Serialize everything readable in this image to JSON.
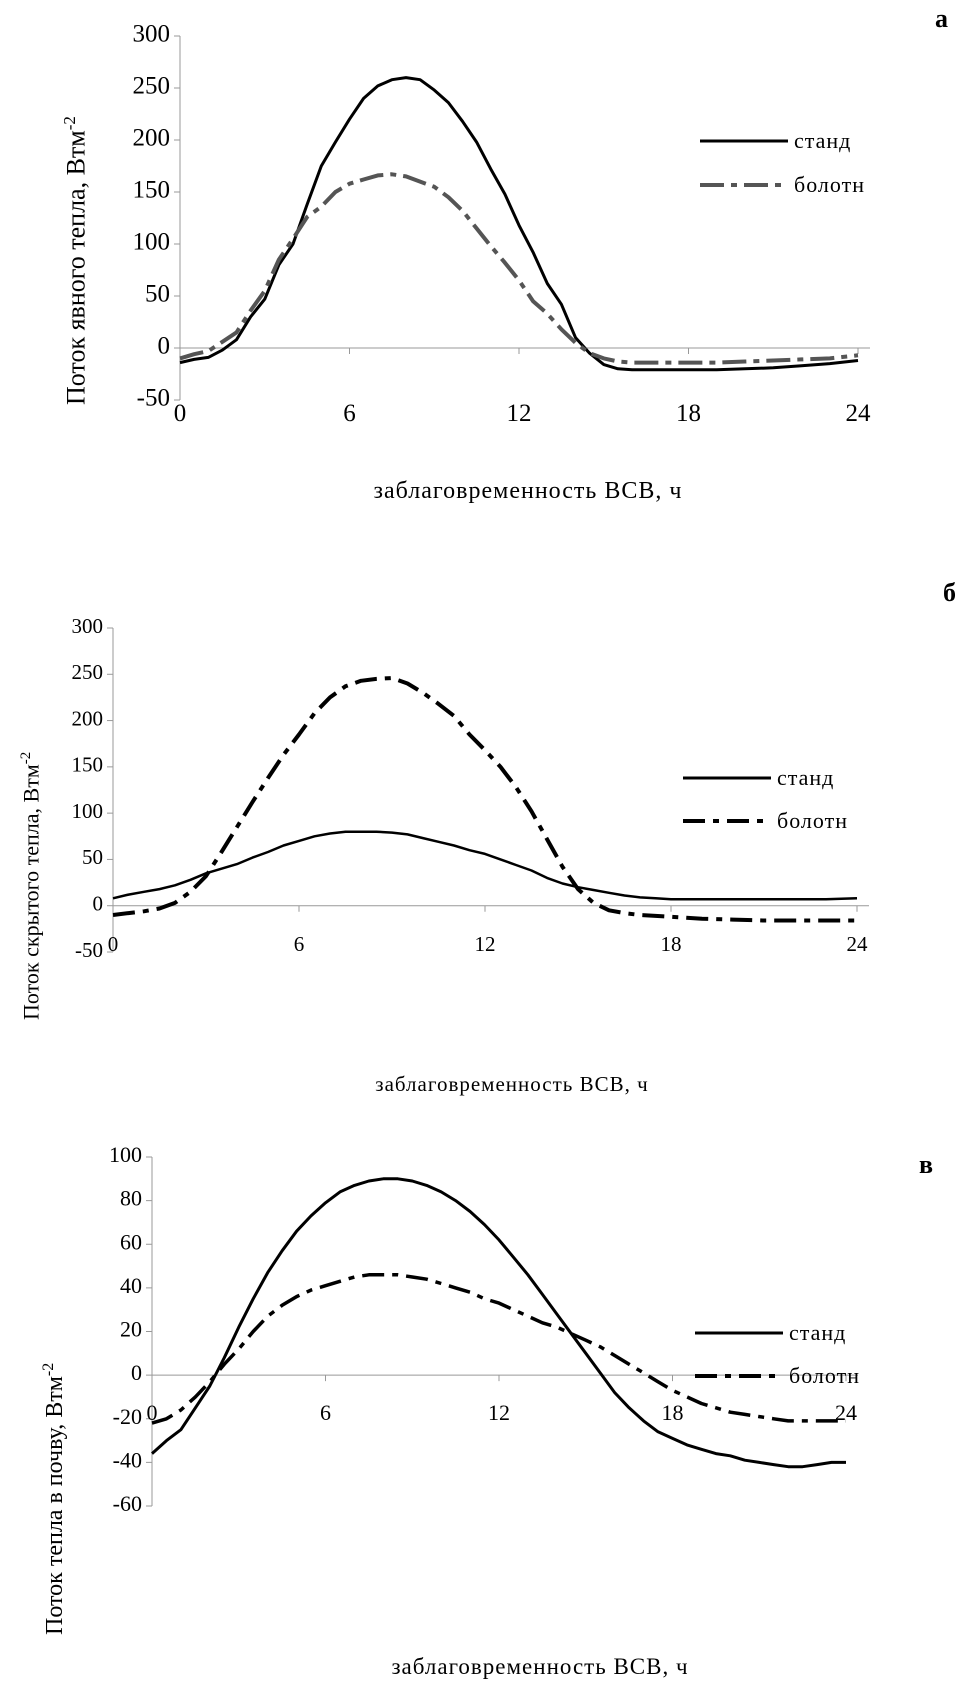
{
  "chart_data": [
    {
      "type": "line",
      "panel_label": "а",
      "xlabel": "заблаговременность ВСВ, ч",
      "ylabel": "Поток явного тепла, Втм",
      "ylabel_sup": "-2",
      "xlim": [
        0,
        24
      ],
      "ylim": [
        -50,
        300
      ],
      "xticks": [
        "0",
        "6",
        "12",
        "18",
        "24"
      ],
      "yticks": [
        "300",
        "250",
        "200",
        "150",
        "100",
        "50",
        "0",
        "-50"
      ],
      "legend": "right",
      "series": [
        {
          "name": "станд",
          "color": "#000000",
          "x": [
            0,
            0.5,
            1,
            1.5,
            2,
            2.5,
            3,
            3.5,
            4,
            4.5,
            5,
            5.5,
            6,
            6.5,
            7,
            7.5,
            8,
            8.5,
            9,
            9.5,
            10,
            10.5,
            11,
            11.5,
            12,
            12.5,
            13,
            13.5,
            14,
            14.5,
            15,
            15.5,
            16,
            16.5,
            17,
            18,
            19,
            20,
            21,
            22,
            23,
            24
          ],
          "values": [
            -14,
            -11,
            -9,
            -2,
            8,
            30,
            47,
            80,
            100,
            138,
            175,
            198,
            220,
            240,
            252,
            258,
            260,
            258,
            248,
            236,
            218,
            198,
            172,
            148,
            118,
            92,
            62,
            42,
            10,
            -5,
            -16,
            -20,
            -21,
            -21,
            -21,
            -21,
            -21,
            -20,
            -19,
            -17,
            -15,
            -12
          ]
        },
        {
          "name": "болотн",
          "color": "#555555",
          "x": [
            0,
            0.5,
            1,
            1.5,
            2,
            2.5,
            3,
            3.5,
            4,
            4.5,
            5,
            5.5,
            6,
            6.5,
            7,
            7.5,
            8,
            8.5,
            9,
            9.5,
            10,
            10.5,
            11,
            11.5,
            12,
            12.5,
            13,
            13.5,
            14,
            14.5,
            15,
            15.5,
            16,
            17,
            18,
            19,
            20,
            21,
            22,
            23,
            24
          ],
          "values": [
            -10,
            -6,
            -3,
            6,
            15,
            36,
            55,
            85,
            105,
            126,
            136,
            150,
            158,
            162,
            166,
            167,
            165,
            160,
            155,
            145,
            132,
            115,
            98,
            82,
            65,
            45,
            33,
            18,
            5,
            -5,
            -10,
            -13,
            -14,
            -14,
            -14,
            -14,
            -13,
            -12,
            -11,
            -10,
            -7
          ]
        }
      ]
    },
    {
      "type": "line",
      "panel_label": "б",
      "xlabel": "заблаговременность ВСВ, ч",
      "ylabel": "Поток скрытого тепла, Втм",
      "ylabel_sup": "-2",
      "xlim": [
        0,
        24
      ],
      "ylim": [
        -50,
        300
      ],
      "xticks": [
        "0",
        "6",
        "12",
        "18",
        "24"
      ],
      "yticks": [
        "300",
        "250",
        "200",
        "150",
        "100",
        "50",
        "0",
        "-50"
      ],
      "legend": "right",
      "series": [
        {
          "name": "станд",
          "color": "#000000",
          "x": [
            0,
            0.5,
            1,
            1.5,
            2,
            2.5,
            3,
            3.5,
            4,
            4.5,
            5,
            5.5,
            6,
            6.5,
            7,
            7.5,
            8,
            8.5,
            9,
            9.5,
            10,
            10.5,
            11,
            11.5,
            12,
            12.5,
            13,
            13.5,
            14,
            14.5,
            15,
            15.5,
            16,
            16.5,
            17,
            17.5,
            18,
            19,
            20,
            21,
            22,
            23,
            24
          ],
          "values": [
            8,
            12,
            15,
            18,
            22,
            28,
            35,
            40,
            45,
            52,
            58,
            65,
            70,
            75,
            78,
            80,
            80,
            80,
            79,
            77,
            73,
            69,
            65,
            60,
            56,
            50,
            44,
            38,
            30,
            24,
            20,
            17,
            14,
            11,
            9,
            8,
            7,
            7,
            7,
            7,
            7,
            7,
            8
          ]
        },
        {
          "name": "болотн",
          "color": "#000000",
          "x": [
            0,
            0.5,
            1,
            1.5,
            2,
            2.5,
            3,
            3.5,
            4,
            4.5,
            5,
            5.5,
            6,
            6.5,
            7,
            7.5,
            8,
            8.5,
            9,
            9.5,
            10,
            10.5,
            11,
            11.5,
            12,
            12.5,
            13,
            13.5,
            14,
            14.5,
            15,
            15.5,
            16,
            16.5,
            17,
            17.5,
            18,
            19,
            20,
            21,
            22,
            23,
            24
          ],
          "values": [
            -10,
            -8,
            -6,
            -3,
            3,
            15,
            32,
            58,
            85,
            112,
            138,
            163,
            185,
            208,
            225,
            237,
            243,
            245,
            246,
            240,
            230,
            218,
            205,
            185,
            168,
            150,
            128,
            102,
            72,
            42,
            18,
            3,
            -5,
            -8,
            -10,
            -11,
            -12,
            -14,
            -15,
            -16,
            -16,
            -16,
            -16
          ]
        }
      ]
    },
    {
      "type": "line",
      "panel_label": "в",
      "xlabel": "заблаговременность ВСВ, ч",
      "ylabel": "Поток тепла в почву, Втм",
      "ylabel_sup": "-2",
      "xlim": [
        0,
        24
      ],
      "ylim": [
        -60,
        100
      ],
      "xticks": [
        "0",
        "6",
        "12",
        "18",
        "24"
      ],
      "yticks": [
        "100",
        "80",
        "60",
        "40",
        "20",
        "0",
        "-20",
        "-40",
        "-60"
      ],
      "legend": "right",
      "series": [
        {
          "name": "станд",
          "color": "#000000",
          "x": [
            0,
            0.5,
            1,
            1.5,
            2,
            2.5,
            3,
            3.5,
            4,
            4.5,
            5,
            5.5,
            6,
            6.5,
            7,
            7.5,
            8,
            8.5,
            9,
            9.5,
            10,
            10.5,
            11,
            11.5,
            12,
            12.5,
            13,
            13.5,
            14,
            14.5,
            15,
            15.5,
            16,
            16.5,
            17,
            17.5,
            18,
            18.5,
            19,
            19.5,
            20,
            20.5,
            21,
            21.5,
            22,
            22.5,
            23,
            23.5,
            24
          ],
          "values": [
            -36,
            -30,
            -25,
            -15,
            -5,
            8,
            22,
            35,
            47,
            57,
            66,
            73,
            79,
            84,
            87,
            89,
            90,
            90,
            89,
            87,
            84,
            80,
            75,
            69,
            62,
            54,
            46,
            37,
            28,
            19,
            10,
            1,
            -8,
            -15,
            -21,
            -26,
            -29,
            -32,
            -34,
            -36,
            -37,
            -39,
            -40,
            -41,
            -42,
            -42,
            -41,
            -40,
            -40
          ]
        },
        {
          "name": "болотн",
          "color": "#000000",
          "x": [
            0,
            0.5,
            1,
            1.5,
            2,
            2.5,
            3,
            3.5,
            4,
            4.5,
            5,
            5.5,
            6,
            6.5,
            7,
            7.5,
            8,
            8.5,
            9,
            9.5,
            10,
            10.5,
            11,
            11.5,
            12,
            12.5,
            13,
            13.5,
            14,
            14.5,
            15,
            15.5,
            16,
            16.5,
            17,
            17.5,
            18,
            18.5,
            19,
            19.5,
            20,
            20.5,
            21,
            21.5,
            22,
            22.5,
            23,
            23.5,
            24
          ],
          "values": [
            -22,
            -20,
            -16,
            -10,
            -3,
            5,
            12,
            20,
            27,
            32,
            36,
            39,
            41,
            43,
            45,
            46,
            46,
            46,
            45,
            44,
            42,
            40,
            38,
            35,
            33,
            30,
            27,
            24,
            22,
            19,
            16,
            13,
            9,
            5,
            1,
            -3,
            -7,
            -10,
            -13,
            -15,
            -17,
            -18,
            -19,
            -20,
            -21,
            -21,
            -21,
            -21,
            -21
          ]
        }
      ]
    }
  ]
}
